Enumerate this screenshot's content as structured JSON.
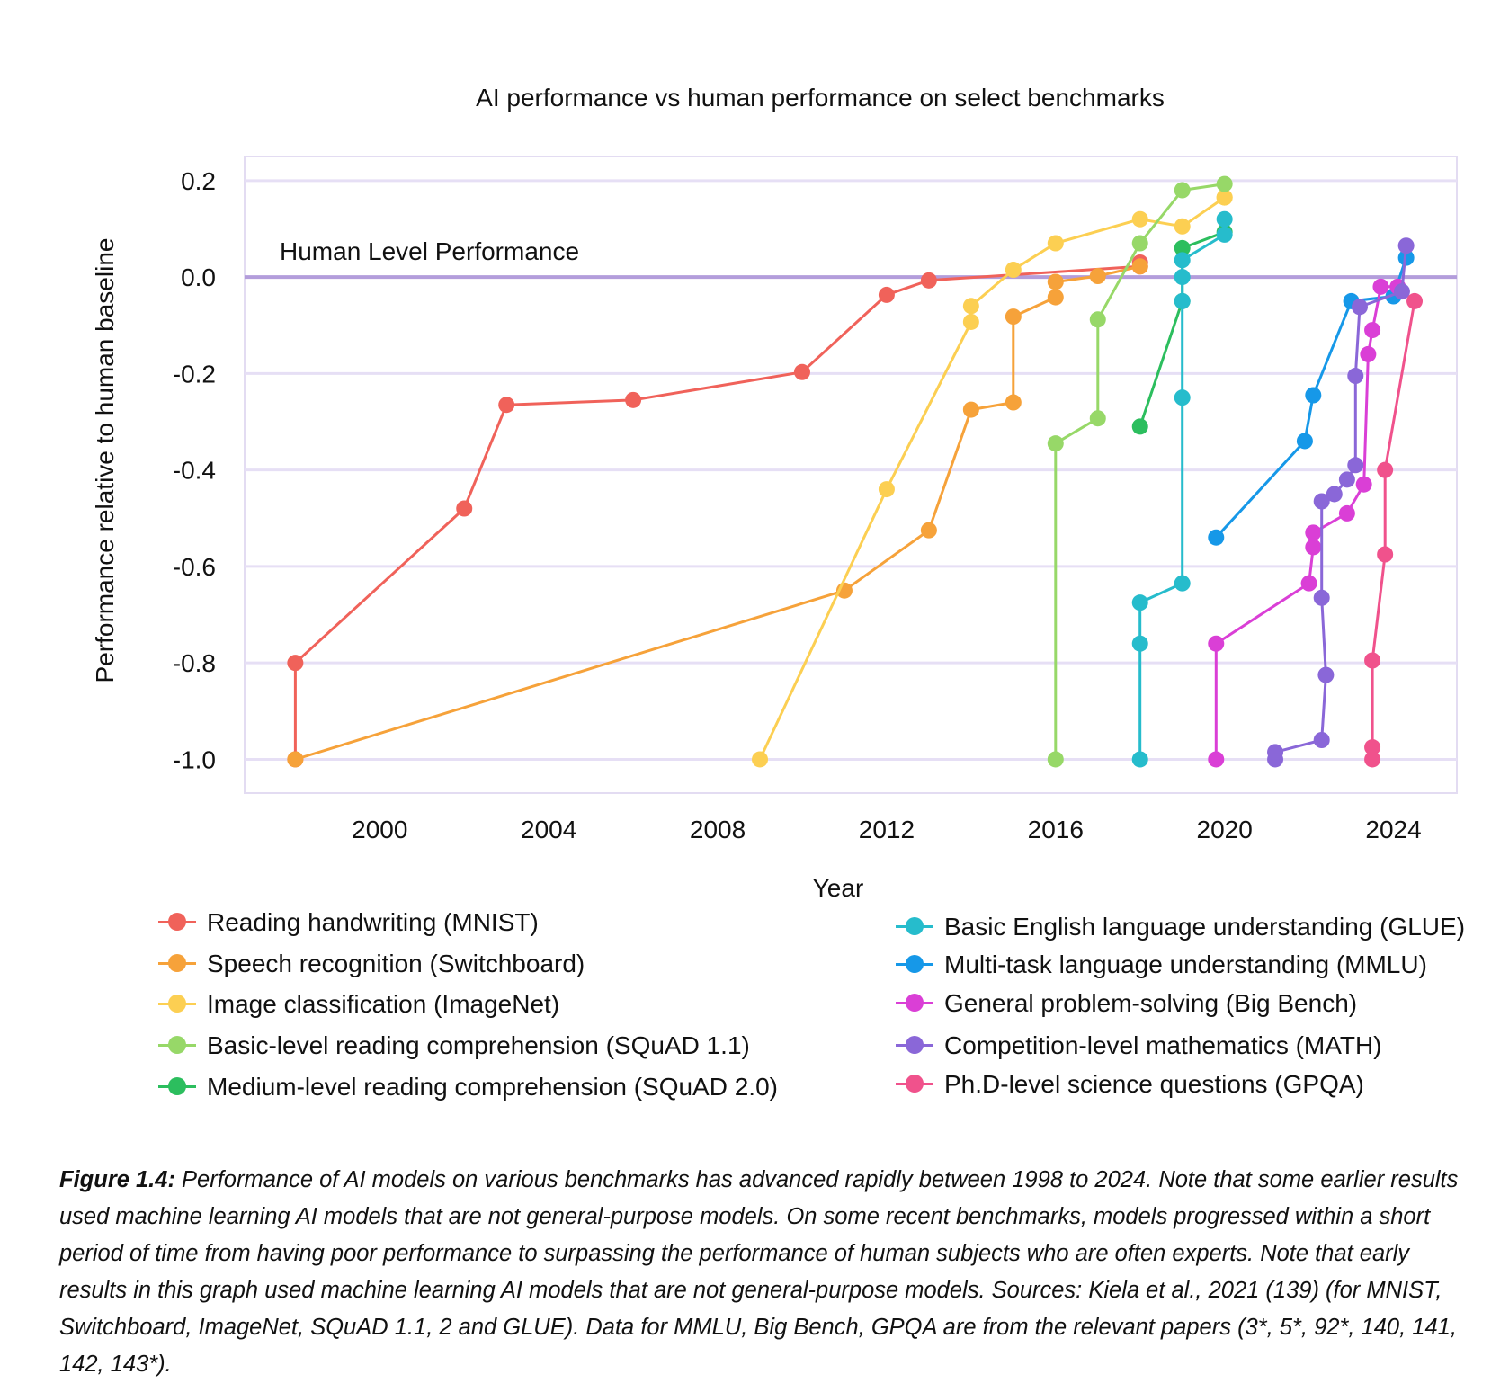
{
  "chart_data": {
    "type": "line",
    "title": "AI performance vs human performance on select benchmarks",
    "xlabel": "Year",
    "ylabel": "Performance relative to human baseline",
    "xlim": [
      1996.8,
      2025.5
    ],
    "ylim": [
      -1.07,
      0.25
    ],
    "xticks": [
      2000,
      2004,
      2008,
      2012,
      2016,
      2020,
      2024
    ],
    "xtick_labels": [
      "2000",
      "2004",
      "2008",
      "2012",
      "2016",
      "2020",
      "2024"
    ],
    "yticks": [
      0.2,
      0.0,
      -0.2,
      -0.4,
      -0.6,
      -0.8,
      -1.0
    ],
    "ytick_labels": [
      "0.2",
      "0.0",
      "-0.2",
      "-0.4",
      "-0.6",
      "-0.8",
      "-1.0"
    ],
    "grid": true,
    "reference_line": {
      "y": 0.0,
      "label": "Human Level Performance",
      "color": "#b39ddb"
    },
    "legend_position": "bottom",
    "series": [
      {
        "name": "Reading handwriting (MNIST)",
        "color": "#f0625a",
        "legend_column": 0,
        "x": [
          1998,
          1998,
          2002,
          2003,
          2006,
          2010,
          2012,
          2013,
          2018,
          2018
        ],
        "y": [
          -1.0,
          -0.8,
          -0.48,
          -0.265,
          -0.255,
          -0.197,
          -0.037,
          -0.007,
          0.022,
          0.03
        ]
      },
      {
        "name": "Speech recognition (Switchboard)",
        "color": "#f6a23a",
        "legend_column": 0,
        "x": [
          1998,
          2011,
          2013,
          2014,
          2015,
          2015,
          2016,
          2016,
          2017,
          2018
        ],
        "y": [
          -1.0,
          -0.65,
          -0.525,
          -0.275,
          -0.26,
          -0.082,
          -0.042,
          -0.01,
          0.002,
          0.022
        ]
      },
      {
        "name": "Image classification (ImageNet)",
        "color": "#fccf52",
        "legend_column": 0,
        "x": [
          2009,
          2012,
          2014,
          2014,
          2015,
          2016,
          2018,
          2019,
          2020,
          2020
        ],
        "y": [
          -1.0,
          -0.44,
          -0.093,
          -0.06,
          0.015,
          0.07,
          0.12,
          0.105,
          0.165,
          0.165
        ]
      },
      {
        "name": "Basic-level reading comprehension (SQuAD 1.1)",
        "color": "#97d868",
        "legend_column": 0,
        "x": [
          2016,
          2016,
          2017,
          2017,
          2018,
          2019,
          2020
        ],
        "y": [
          -1.0,
          -0.345,
          -0.293,
          -0.088,
          0.07,
          0.18,
          0.193
        ]
      },
      {
        "name": "Medium-level reading comprehension (SQuAD 2.0)",
        "color": "#2cbe5e",
        "legend_column": 0,
        "x": [
          2018,
          2019,
          2019,
          2020
        ],
        "y": [
          -0.31,
          -0.05,
          0.06,
          0.093
        ]
      },
      {
        "name": "Basic English language understanding (GLUE)",
        "color": "#26bccc",
        "legend_column": 1,
        "x": [
          2018,
          2018,
          2018,
          2019,
          2019,
          2019,
          2019,
          2019,
          2020,
          2020
        ],
        "y": [
          -1.0,
          -0.76,
          -0.675,
          -0.635,
          -0.25,
          -0.05,
          0.0,
          0.035,
          0.088,
          0.12
        ]
      },
      {
        "name": "Multi-task language understanding (MMLU)",
        "color": "#1698e8",
        "legend_column": 1,
        "x": [
          2019.8,
          2021.9,
          2022.1,
          2023.0,
          2024.0,
          2024.3
        ],
        "y": [
          -0.54,
          -0.34,
          -0.245,
          -0.05,
          -0.04,
          0.04
        ]
      },
      {
        "name": "General problem-solving (Big Bench)",
        "color": "#da3fd6",
        "legend_column": 1,
        "x": [
          2019.8,
          2019.8,
          2022.0,
          2022.1,
          2022.1,
          2022.9,
          2023.3,
          2023.4,
          2023.5,
          2023.7,
          2024.1
        ],
        "y": [
          -1.0,
          -0.76,
          -0.635,
          -0.56,
          -0.53,
          -0.49,
          -0.43,
          -0.16,
          -0.11,
          -0.02,
          -0.02
        ]
      },
      {
        "name": "Competition-level mathematics (MATH)",
        "color": "#8a67d8",
        "legend_column": 1,
        "x": [
          2021.2,
          2021.2,
          2022.3,
          2022.4,
          2022.3,
          2022.3,
          2022.6,
          2022.9,
          2023.1,
          2023.1,
          2023.2,
          2024.2,
          2024.3
        ],
        "y": [
          -1.0,
          -0.985,
          -0.96,
          -0.825,
          -0.665,
          -0.465,
          -0.45,
          -0.42,
          -0.39,
          -0.205,
          -0.062,
          -0.03,
          0.065
        ]
      },
      {
        "name": "Ph.D-level science questions (GPQA)",
        "color": "#f0528c",
        "legend_column": 1,
        "x": [
          2023.5,
          2023.5,
          2023.5,
          2023.8,
          2023.8,
          2024.5
        ],
        "y": [
          -1.0,
          -0.975,
          -0.795,
          -0.575,
          -0.4,
          -0.05
        ]
      }
    ]
  },
  "caption": {
    "label": "Figure 1.4:",
    "text": " Performance of AI models on various benchmarks has advanced rapidly between 1998 to 2024. Note that some earlier results used machine learning AI models that are not general-purpose models. On some recent benchmarks, models progressed within a short period of time from having poor performance to surpassing the performance of human subjects who are often experts. Note that early results in this graph used machine learning AI models that are not general-purpose models. Sources: Kiela et al., 2021 (139) (for MNIST, Switchboard, ImageNet, SQuAD 1.1, 2 and GLUE). Data for MMLU, Big Bench, GPQA are from the relevant papers (3*, 5*, 92*, 140, 141, 142, 143*)."
  }
}
